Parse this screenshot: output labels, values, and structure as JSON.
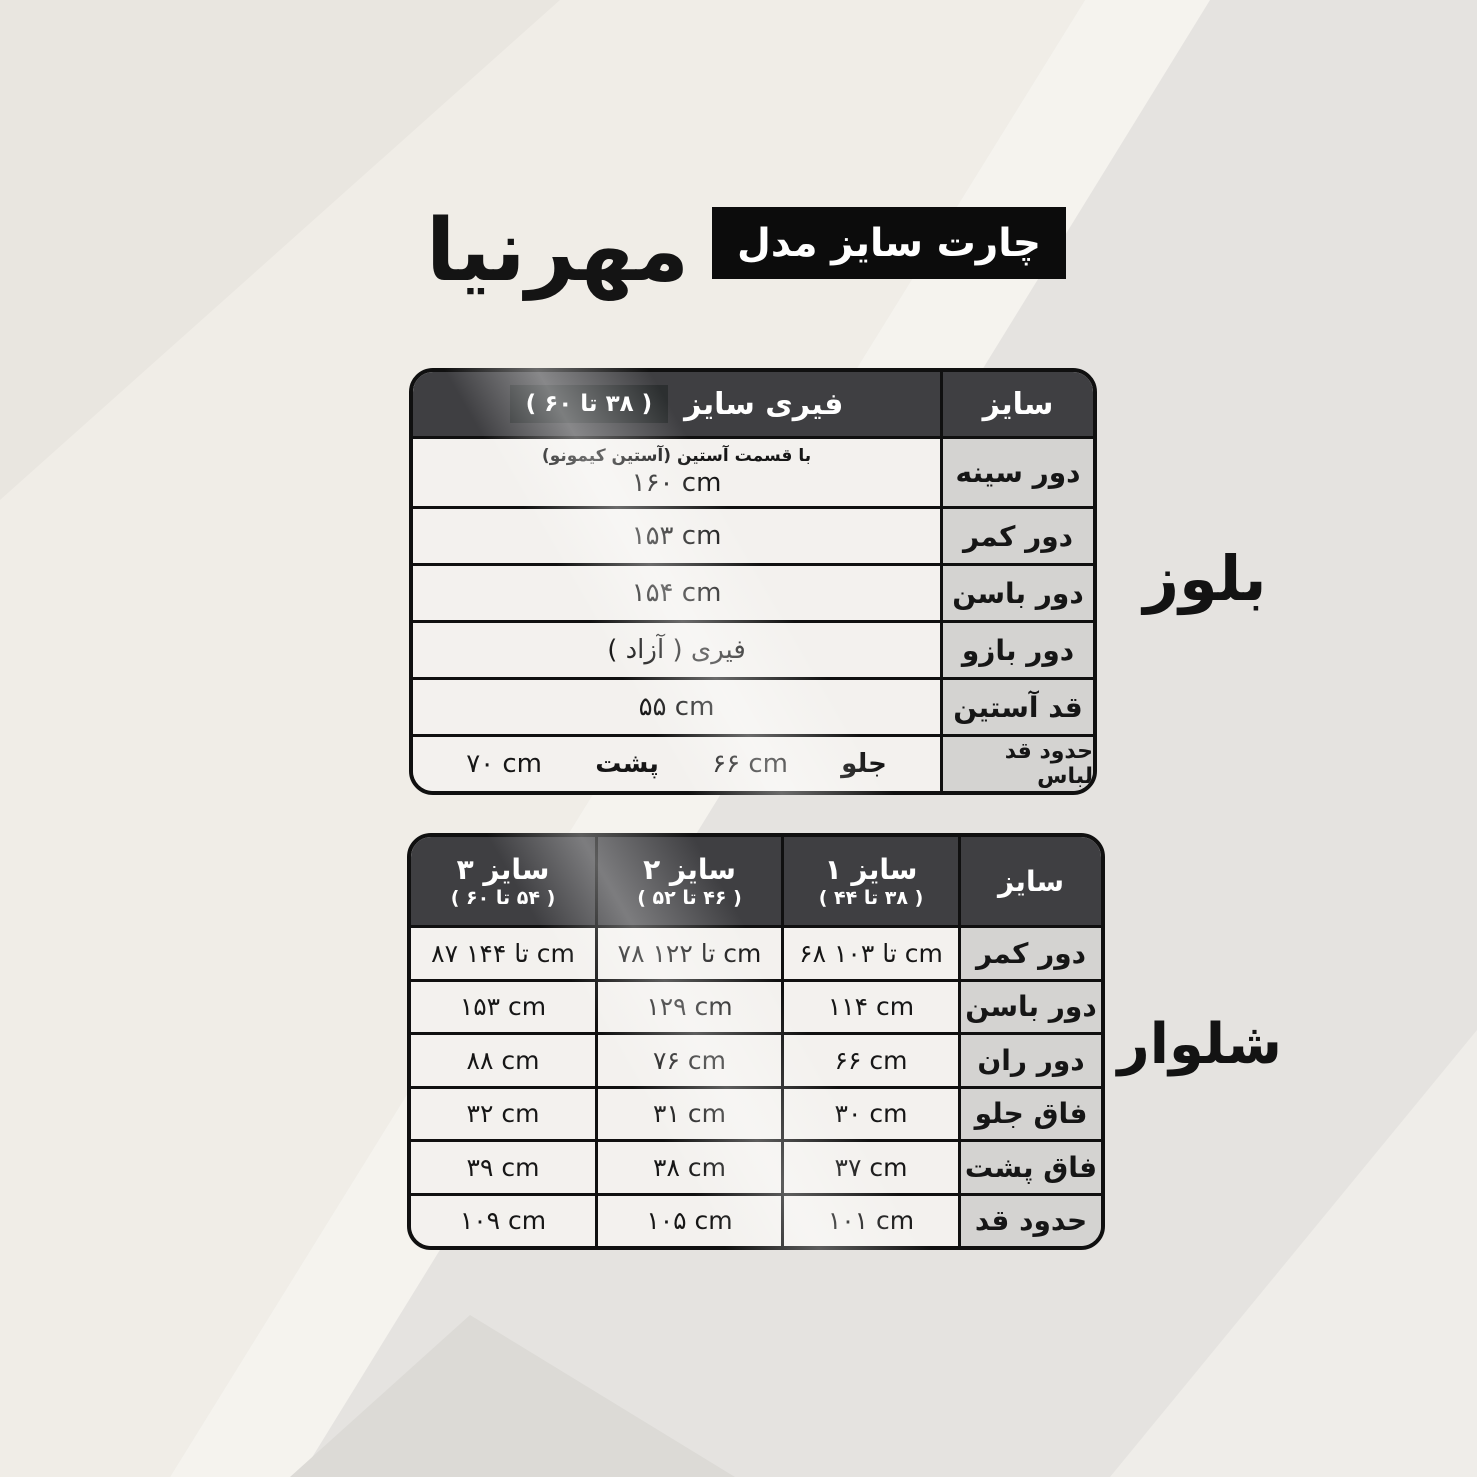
{
  "header": {
    "brand": "مهرنیا",
    "chart_title": "چارت سایز مدل"
  },
  "blouse": {
    "side_label": "بلوز",
    "size_header": "سایز",
    "free_size_label": "فیری سایز",
    "free_size_range": "( ۳۸ تا ۶۰ )",
    "rows": [
      {
        "label": "دور سینه",
        "note": "با قسمت آستین (آستین کیمونو)",
        "value": "۱۶۰  cm"
      },
      {
        "label": "دور کمر",
        "value": "۱۵۳ cm"
      },
      {
        "label": "دور باسن",
        "value": "۱۵۴ cm"
      },
      {
        "label": "دور بازو",
        "value": "فیری ( آزاد )"
      },
      {
        "label": "قد آستین",
        "value": "۵۵ cm"
      },
      {
        "label": "حدود قد لباس",
        "segments": [
          {
            "caption": "جلو",
            "value": "۶۶ cm"
          },
          {
            "caption": "پشت",
            "value": "۷۰ cm"
          }
        ]
      }
    ]
  },
  "pants": {
    "side_label": "شلوار",
    "columns": [
      {
        "label": "سایز",
        "range": ""
      },
      {
        "label": "سایز ۱",
        "range": "( ۳۸ تا ۴۴ )"
      },
      {
        "label": "سایز ۲",
        "range": "( ۴۶ تا ۵۲ )"
      },
      {
        "label": "سایز ۳",
        "range": "( ۵۴ تا ۶۰ )"
      }
    ],
    "rows": [
      {
        "label": "دور کمر",
        "values": [
          "۶۸ تا ۱۰۳  cm",
          "۷۸ تا ۱۲۲  cm",
          "۸۷ تا ۱۴۴  cm"
        ]
      },
      {
        "label": "دور باسن",
        "values": [
          "۱۱۴  cm",
          "۱۲۹  cm",
          "۱۵۳  cm"
        ]
      },
      {
        "label": "دور ران",
        "values": [
          "۶۶  cm",
          "۷۶  cm",
          "۸۸  cm"
        ]
      },
      {
        "label": "فاق جلو",
        "values": [
          "۳۰  cm",
          "۳۱  cm",
          "۳۲  cm"
        ]
      },
      {
        "label": "فاق پشت",
        "values": [
          "۳۷ cm",
          "۳۸  cm",
          "۳۹ cm"
        ]
      },
      {
        "label": "حدود قد",
        "values": [
          "۱۰۱  cm",
          "۱۰۵  cm",
          "۱۰۹  cm"
        ]
      }
    ]
  },
  "colors": {
    "background": "#f0ede7",
    "header_dark": "#3f3f42",
    "range_box": "#2c2f30",
    "label_cell": "#d4d3d1",
    "value_cell": "#f3f1ee",
    "border": "#101010",
    "title_box": "#0c0c0c"
  },
  "chart_data": [
    {
      "type": "table",
      "title": "بلوز",
      "columns": [
        "سایز",
        "فیری سایز ( ۳۸ تا ۶۰ )"
      ],
      "rows": [
        [
          "دور سینه",
          "با قسمت آستین (آستین کیمونو) — ۱۶۰ cm"
        ],
        [
          "دور کمر",
          "۱۵۳ cm"
        ],
        [
          "دور باسن",
          "۱۵۴ cm"
        ],
        [
          "دور بازو",
          "فیری ( آزاد )"
        ],
        [
          "قد آستین",
          "۵۵ cm"
        ],
        [
          "حدود قد لباس",
          "جلو ۶۶ cm — پشت ۷۰ cm"
        ]
      ]
    },
    {
      "type": "table",
      "title": "شلوار",
      "columns": [
        "سایز",
        "سایز ۱ ( ۳۸ تا ۴۴ )",
        "سایز ۲ ( ۴۶ تا ۵۲ )",
        "سایز ۳ ( ۵۴ تا ۶۰ )"
      ],
      "rows": [
        [
          "دور کمر",
          "۶۸ تا ۱۰۳ cm",
          "۷۸ تا ۱۲۲ cm",
          "۸۷ تا ۱۴۴ cm"
        ],
        [
          "دور باسن",
          "۱۱۴ cm",
          "۱۲۹ cm",
          "۱۵۳ cm"
        ],
        [
          "دور ران",
          "۶۶ cm",
          "۷۶ cm",
          "۸۸ cm"
        ],
        [
          "فاق جلو",
          "۳۰ cm",
          "۳۱ cm",
          "۳۲ cm"
        ],
        [
          "فاق پشت",
          "۳۷ cm",
          "۳۸ cm",
          "۳۹ cm"
        ],
        [
          "حدود قد",
          "۱۰۱ cm",
          "۱۰۵ cm",
          "۱۰۹ cm"
        ]
      ]
    }
  ]
}
